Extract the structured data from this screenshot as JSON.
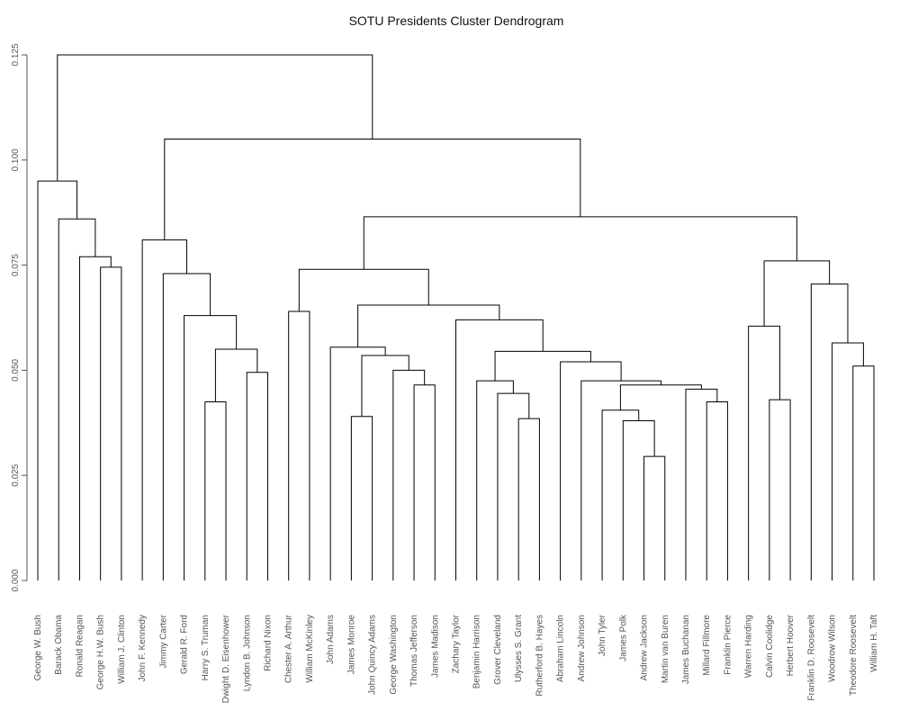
{
  "chart_data": {
    "type": "dendrogram",
    "title": "SOTU Presidents Cluster Dendrogram",
    "ylabel": "",
    "ylim": [
      0,
      0.125
    ],
    "y_ticks": [
      0.0,
      0.025,
      0.05,
      0.075,
      0.1,
      0.125
    ],
    "y_tick_labels": [
      "0.000",
      "0.025",
      "0.050",
      "0.075",
      "0.100",
      "0.125"
    ],
    "leaves": [
      "George W. Bush",
      "Barack Obama",
      "Ronald Reagan",
      "George H.W. Bush",
      "William J. Clinton",
      "John F. Kennedy",
      "Jimmy Carter",
      "Gerald R. Ford",
      "Harry S. Truman",
      "Dwight D. Eisenhower",
      "Lyndon B. Johnson",
      "Richard Nixon",
      "Chester A. Arthur",
      "William McKinley",
      "John Adams",
      "James Monroe",
      "John Quincy Adams",
      "George Washington",
      "Thomas Jefferson",
      "James Madison",
      "Zachary Taylor",
      "Benjamin Harrison",
      "Grover Cleveland",
      "Ulysses S. Grant",
      "Rutherford B. Hayes",
      "Abraham Lincoln",
      "Andrew Johnson",
      "John Tyler",
      "James Polk",
      "Andrew Jackson",
      "Martin van Buren",
      "James Buchanan",
      "Millard Fillmore",
      "Franklin Pierce",
      "Warren Harding",
      "Calvin Coolidge",
      "Herbert Hoover",
      "Franklin D. Roosevelt",
      "Woodrow Wilson",
      "Theodore Roosevelt",
      "William H. Taft"
    ],
    "merges": [
      {
        "id": "m1",
        "left": "L3",
        "right": "L4",
        "height": 0.0745
      },
      {
        "id": "m2",
        "left": "L2",
        "right": "m1",
        "height": 0.077
      },
      {
        "id": "m3",
        "left": "L1",
        "right": "m2",
        "height": 0.086
      },
      {
        "id": "m4",
        "left": "L0",
        "right": "m3",
        "height": 0.095
      },
      {
        "id": "m5",
        "left": "L10",
        "right": "L11",
        "height": 0.0495
      },
      {
        "id": "m6",
        "left": "L8",
        "right": "L9",
        "height": 0.0425
      },
      {
        "id": "m7",
        "left": "m6",
        "right": "m5",
        "height": 0.055
      },
      {
        "id": "m8",
        "left": "L7",
        "right": "m7",
        "height": 0.063
      },
      {
        "id": "m9",
        "left": "L6",
        "right": "m8",
        "height": 0.073
      },
      {
        "id": "m10",
        "left": "L5",
        "right": "m9",
        "height": 0.081
      },
      {
        "id": "m11",
        "left": "L12",
        "right": "L13",
        "height": 0.064
      },
      {
        "id": "m12",
        "left": "L15",
        "right": "L16",
        "height": 0.039
      },
      {
        "id": "m13",
        "left": "L18",
        "right": "L19",
        "height": 0.0465
      },
      {
        "id": "m14",
        "left": "L17",
        "right": "m13",
        "height": 0.05
      },
      {
        "id": "m15",
        "left": "m12",
        "right": "m14",
        "height": 0.0535
      },
      {
        "id": "m16",
        "left": "L14",
        "right": "m15",
        "height": 0.0555
      },
      {
        "id": "m17",
        "left": "L23",
        "right": "L24",
        "height": 0.0385
      },
      {
        "id": "m18",
        "left": "L22",
        "right": "m17",
        "height": 0.0445
      },
      {
        "id": "m19",
        "left": "L21",
        "right": "m18",
        "height": 0.0475
      },
      {
        "id": "m20",
        "left": "L29",
        "right": "L30",
        "height": 0.0295
      },
      {
        "id": "m21",
        "left": "L28",
        "right": "m20",
        "height": 0.038
      },
      {
        "id": "m22",
        "left": "L27",
        "right": "m21",
        "height": 0.0405
      },
      {
        "id": "m23",
        "left": "L32",
        "right": "L33",
        "height": 0.0425
      },
      {
        "id": "m24",
        "left": "L31",
        "right": "m23",
        "height": 0.0455
      },
      {
        "id": "m25",
        "left": "m22",
        "right": "m24",
        "height": 0.0465
      },
      {
        "id": "m26",
        "left": "L26",
        "right": "m25",
        "height": 0.0475
      },
      {
        "id": "m27",
        "left": "L25",
        "right": "m26",
        "height": 0.052
      },
      {
        "id": "m28",
        "left": "m19",
        "right": "m27",
        "height": 0.0545
      },
      {
        "id": "m29",
        "left": "L20",
        "right": "m28",
        "height": 0.062
      },
      {
        "id": "m30",
        "left": "m16",
        "right": "m29",
        "height": 0.0655
      },
      {
        "id": "m31",
        "left": "m11",
        "right": "m30",
        "height": 0.074
      },
      {
        "id": "m32",
        "left": "L35",
        "right": "L36",
        "height": 0.043
      },
      {
        "id": "m33",
        "left": "L34",
        "right": "m32",
        "height": 0.0605
      },
      {
        "id": "m34",
        "left": "L39",
        "right": "L40",
        "height": 0.051
      },
      {
        "id": "m35",
        "left": "L38",
        "right": "m34",
        "height": 0.0565
      },
      {
        "id": "m36",
        "left": "L37",
        "right": "m35",
        "height": 0.0705
      },
      {
        "id": "m37",
        "left": "m33",
        "right": "m36",
        "height": 0.076
      },
      {
        "id": "m38",
        "left": "m31",
        "right": "m37",
        "height": 0.0865
      },
      {
        "id": "m39",
        "left": "m10",
        "right": "m38",
        "height": 0.105
      },
      {
        "id": "m40",
        "left": "m4",
        "right": "m39",
        "height": 0.125
      }
    ]
  }
}
